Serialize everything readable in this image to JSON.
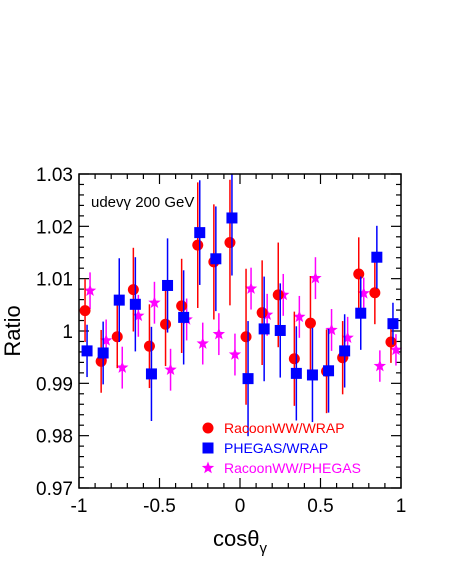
{
  "chart_data": {
    "type": "scatter",
    "annotation": "udevγ   200 GeV",
    "xlabel": "cosθ",
    "xlabel_sub": "γ",
    "ylabel": "Ratio",
    "xlim": [
      -1,
      1
    ],
    "ylim": [
      0.97,
      1.03
    ],
    "x_ticks": [
      -1,
      -0.5,
      0,
      0.5,
      1
    ],
    "x_tick_labels": [
      "-1",
      "-0.5",
      "0",
      "0.5",
      "1"
    ],
    "y_ticks": [
      0.97,
      0.98,
      0.99,
      1.0,
      1.01,
      1.02,
      1.03
    ],
    "y_tick_labels": [
      "0.97",
      "0.98",
      "0.99",
      "1",
      "1.01",
      "1.02",
      "1.03"
    ],
    "grid": false,
    "legend_position": "bottom-right",
    "series": [
      {
        "name": "RacoonWW/WRAP",
        "marker": "circle",
        "color": "#ff0000",
        "points": [
          {
            "x": -0.95,
            "y": 1.0039,
            "err": 0.006
          },
          {
            "x": -0.85,
            "y": 0.9942,
            "err": 0.006
          },
          {
            "x": -0.75,
            "y": 0.9989,
            "err": 0.006
          },
          {
            "x": -0.65,
            "y": 1.0079,
            "err": 0.008
          },
          {
            "x": -0.55,
            "y": 0.9971,
            "err": 0.008
          },
          {
            "x": -0.45,
            "y": 1.0013,
            "err": 0.008
          },
          {
            "x": -0.35,
            "y": 1.0048,
            "err": 0.009
          },
          {
            "x": -0.25,
            "y": 1.0164,
            "err": 0.012
          },
          {
            "x": -0.15,
            "y": 1.0132,
            "err": 0.011
          },
          {
            "x": -0.05,
            "y": 1.0169,
            "err": 0.012
          },
          {
            "x": 0.05,
            "y": 0.9989,
            "err": 0.013
          },
          {
            "x": 0.15,
            "y": 1.0035,
            "err": 0.01
          },
          {
            "x": 0.25,
            "y": 1.0069,
            "err": 0.01
          },
          {
            "x": 0.35,
            "y": 0.9947,
            "err": 0.009
          },
          {
            "x": 0.45,
            "y": 1.0015,
            "err": 0.009
          },
          {
            "x": 0.55,
            "y": 0.9923,
            "err": 0.008
          },
          {
            "x": 0.65,
            "y": 0.9949,
            "err": 0.007
          },
          {
            "x": 0.75,
            "y": 1.0109,
            "err": 0.007
          },
          {
            "x": 0.85,
            "y": 1.0073,
            "err": 0.006
          },
          {
            "x": 0.95,
            "y": 0.9979,
            "err": 0.004
          }
        ]
      },
      {
        "name": "PHEGAS/WRAP",
        "marker": "square",
        "color": "#0000ff",
        "points": [
          {
            "x": -0.95,
            "y": 0.9962,
            "err": 0.005
          },
          {
            "x": -0.85,
            "y": 0.9958,
            "err": 0.006
          },
          {
            "x": -0.75,
            "y": 1.0059,
            "err": 0.008
          },
          {
            "x": -0.65,
            "y": 1.0051,
            "err": 0.009
          },
          {
            "x": -0.55,
            "y": 0.9918,
            "err": 0.009
          },
          {
            "x": -0.45,
            "y": 1.0087,
            "err": 0.009
          },
          {
            "x": -0.35,
            "y": 1.0026,
            "err": 0.009
          },
          {
            "x": -0.25,
            "y": 1.0188,
            "err": 0.01
          },
          {
            "x": -0.15,
            "y": 1.0138,
            "err": 0.01
          },
          {
            "x": -0.05,
            "y": 1.0216,
            "err": 0.011
          },
          {
            "x": 0.05,
            "y": 0.9909,
            "err": 0.011
          },
          {
            "x": 0.15,
            "y": 1.0004,
            "err": 0.01
          },
          {
            "x": 0.25,
            "y": 1.0001,
            "err": 0.009
          },
          {
            "x": 0.35,
            "y": 0.9919,
            "err": 0.009
          },
          {
            "x": 0.45,
            "y": 0.9916,
            "err": 0.009
          },
          {
            "x": 0.55,
            "y": 0.9924,
            "err": 0.008
          },
          {
            "x": 0.65,
            "y": 0.9962,
            "err": 0.007
          },
          {
            "x": 0.75,
            "y": 1.0034,
            "err": 0.007
          },
          {
            "x": 0.85,
            "y": 1.0141,
            "err": 0.006
          },
          {
            "x": 0.95,
            "y": 1.0014,
            "err": 0.004
          }
        ]
      },
      {
        "name": "RacoonWW/PHEGAS",
        "marker": "star",
        "color": "#ff00ff",
        "points": [
          {
            "x": -0.95,
            "y": 1.0077,
            "err": 0.0035
          },
          {
            "x": -0.85,
            "y": 0.9982,
            "err": 0.004
          },
          {
            "x": -0.75,
            "y": 0.993,
            "err": 0.004
          },
          {
            "x": -0.65,
            "y": 1.0029,
            "err": 0.004
          },
          {
            "x": -0.55,
            "y": 1.0054,
            "err": 0.004
          },
          {
            "x": -0.45,
            "y": 0.9926,
            "err": 0.004
          },
          {
            "x": -0.35,
            "y": 1.0022,
            "err": 0.004
          },
          {
            "x": -0.25,
            "y": 0.9976,
            "err": 0.004
          },
          {
            "x": -0.15,
            "y": 0.9994,
            "err": 0.004
          },
          {
            "x": -0.05,
            "y": 0.9955,
            "err": 0.004
          },
          {
            "x": 0.05,
            "y": 1.0081,
            "err": 0.004
          },
          {
            "x": 0.15,
            "y": 1.0031,
            "err": 0.004
          },
          {
            "x": 0.25,
            "y": 1.0069,
            "err": 0.004
          },
          {
            "x": 0.35,
            "y": 1.0027,
            "err": 0.004
          },
          {
            "x": 0.45,
            "y": 1.0101,
            "err": 0.004
          },
          {
            "x": 0.55,
            "y": 1.0002,
            "err": 0.004
          },
          {
            "x": 0.65,
            "y": 0.9987,
            "err": 0.004
          },
          {
            "x": 0.75,
            "y": 1.0072,
            "err": 0.003
          },
          {
            "x": 0.85,
            "y": 0.9933,
            "err": 0.003
          },
          {
            "x": 0.95,
            "y": 0.9964,
            "err": 0.003
          }
        ]
      }
    ]
  }
}
